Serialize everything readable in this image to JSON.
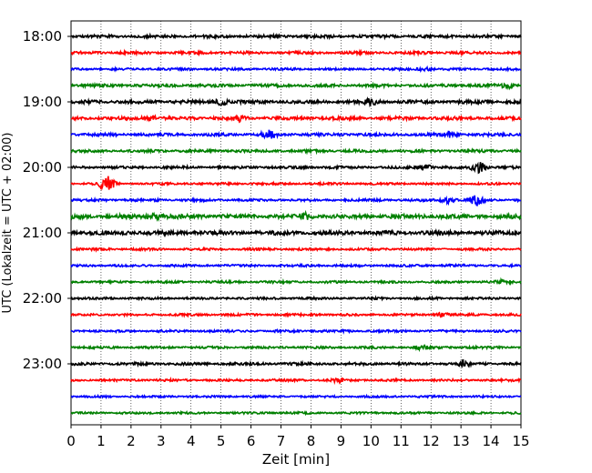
{
  "chart_data": {
    "type": "line",
    "subtype": "helicorder",
    "xlabel": "Zeit  [min]",
    "ylabel": "UTC (Lokalzeit = UTC + 02:00)",
    "xlim": [
      0,
      15
    ],
    "x_ticks": [
      "0",
      "1",
      "2",
      "3",
      "4",
      "5",
      "6",
      "7",
      "8",
      "9",
      "10",
      "11",
      "12",
      "13",
      "14",
      "15"
    ],
    "y_ticks": [
      "18:00",
      "19:00",
      "20:00",
      "21:00",
      "22:00",
      "23:00"
    ],
    "trace_interval_min": 15,
    "trace_colors": [
      "#000000",
      "#ff0000",
      "#0000ff",
      "#008000"
    ],
    "vertical_grid": "dotted",
    "traces": [
      {
        "start": "18:00",
        "amp": 1.3,
        "events": []
      },
      {
        "start": "18:15",
        "amp": 1.2,
        "events": []
      },
      {
        "start": "18:30",
        "amp": 1.0,
        "events": [
          {
            "t": 11.8,
            "a": 2
          }
        ]
      },
      {
        "start": "18:45",
        "amp": 1.3,
        "events": [
          {
            "t": 14.6,
            "a": 2.5
          }
        ]
      },
      {
        "start": "19:00",
        "amp": 1.5,
        "events": [
          {
            "t": 5.0,
            "a": 3
          },
          {
            "t": 10.0,
            "a": 3
          }
        ]
      },
      {
        "start": "19:15",
        "amp": 1.4,
        "events": [
          {
            "t": 2.6,
            "a": 3
          },
          {
            "t": 5.6,
            "a": 2.5
          }
        ]
      },
      {
        "start": "19:30",
        "amp": 1.3,
        "events": [
          {
            "t": 6.6,
            "a": 4
          },
          {
            "t": 12.7,
            "a": 3
          }
        ]
      },
      {
        "start": "19:45",
        "amp": 1.2,
        "events": []
      },
      {
        "start": "20:00",
        "amp": 1.1,
        "events": [
          {
            "t": 11.8,
            "a": 3
          },
          {
            "t": 13.6,
            "a": 6
          }
        ]
      },
      {
        "start": "20:15",
        "amp": 1.0,
        "events": [
          {
            "t": 1.2,
            "a": 9
          }
        ]
      },
      {
        "start": "20:30",
        "amp": 1.1,
        "events": [
          {
            "t": 12.6,
            "a": 3.5
          },
          {
            "t": 13.5,
            "a": 5
          }
        ]
      },
      {
        "start": "20:45",
        "amp": 1.8,
        "events": [
          {
            "t": 2.8,
            "a": 2.5
          },
          {
            "t": 7.8,
            "a": 2.5
          }
        ]
      },
      {
        "start": "21:00",
        "amp": 1.8,
        "events": []
      },
      {
        "start": "21:15",
        "amp": 1.0,
        "events": []
      },
      {
        "start": "21:30",
        "amp": 1.0,
        "events": []
      },
      {
        "start": "21:45",
        "amp": 1.0,
        "events": [
          {
            "t": 14.4,
            "a": 2
          }
        ]
      },
      {
        "start": "22:00",
        "amp": 1.0,
        "events": []
      },
      {
        "start": "22:15",
        "amp": 1.0,
        "events": [
          {
            "t": 12.3,
            "a": 2
          }
        ]
      },
      {
        "start": "22:30",
        "amp": 1.0,
        "events": []
      },
      {
        "start": "22:45",
        "amp": 1.0,
        "events": [
          {
            "t": 11.7,
            "a": 2
          }
        ]
      },
      {
        "start": "23:00",
        "amp": 1.2,
        "events": [
          {
            "t": 13.1,
            "a": 3
          }
        ]
      },
      {
        "start": "23:15",
        "amp": 1.0,
        "events": [
          {
            "t": 9.0,
            "a": 2
          }
        ]
      },
      {
        "start": "23:30",
        "amp": 0.9,
        "events": []
      },
      {
        "start": "23:45",
        "amp": 0.9,
        "events": []
      }
    ]
  }
}
